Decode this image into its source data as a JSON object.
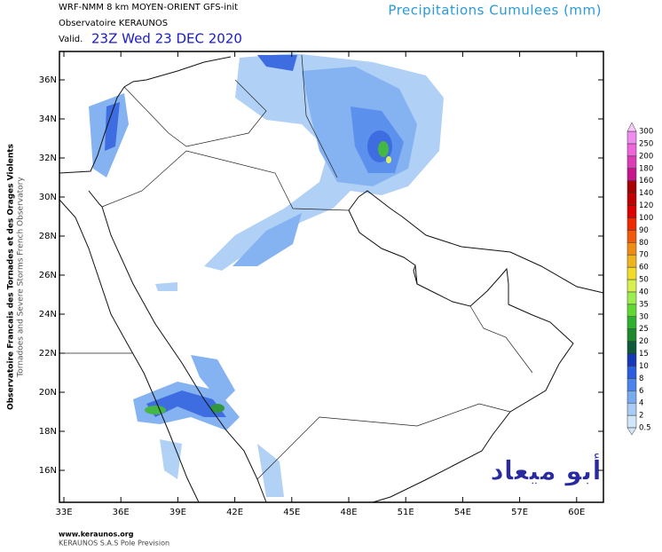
{
  "header": {
    "model": "WRF-NMM 8 km MOYEN-ORIENT  GFS-init",
    "org": "Observatoire KERAUNOS",
    "valid_label": "Valid.",
    "valid_time": "23Z Wed 23 DEC 2020",
    "title": "Precipitations Cumulees (mm)"
  },
  "side_text": [
    "Observatoire Francais des Tornades et des Orages Violents",
    "Tornadoes and Severe Storms French Observatory"
  ],
  "map": {
    "lat_labels": [
      "36N",
      "34N",
      "32N",
      "30N",
      "28N",
      "26N",
      "24N",
      "22N",
      "20N",
      "18N",
      "16N"
    ],
    "lon_labels": [
      "33E",
      "36E",
      "39E",
      "42E",
      "45E",
      "48E",
      "51E",
      "54E",
      "57E",
      "60E"
    ],
    "watermark": "أبو ميعاد"
  },
  "legend": {
    "levels": [
      0.5,
      2,
      4,
      6,
      8,
      10,
      15,
      20,
      25,
      30,
      35,
      40,
      50,
      60,
      70,
      80,
      90,
      100,
      120,
      140,
      160,
      180,
      200,
      250,
      300
    ],
    "colors": [
      "#d2e6fa",
      "#a8ccf4",
      "#78aaf0",
      "#4a84ec",
      "#2a5ede",
      "#1438b8",
      "#0e5a3a",
      "#1c8a2c",
      "#30b030",
      "#62d832",
      "#9cee4e",
      "#d8f04e",
      "#f0dc28",
      "#f0b41e",
      "#f08c14",
      "#f05a0a",
      "#f02800",
      "#dc0000",
      "#c00000",
      "#a80000",
      "#c8148c",
      "#dc3cb4",
      "#f064dc",
      "#f08cf0",
      "#f8c8f8"
    ]
  },
  "footer": [
    "www.keraunos.org",
    "KERAUNOS S.A.S Pole Prevision"
  ]
}
